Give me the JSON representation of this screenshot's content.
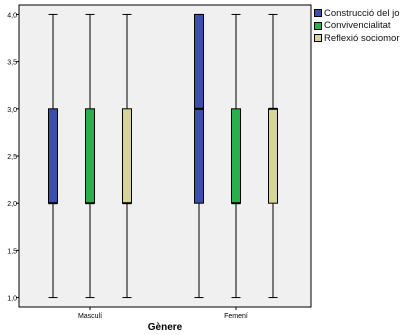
{
  "chart_data": {
    "type": "boxplot",
    "xlabel": "Gènere",
    "ylabel": "",
    "ylim": [
      0.9,
      4.1
    ],
    "yticks": [
      "1,0",
      "1,5",
      "2,0",
      "2,5",
      "3,0",
      "3,5",
      "4,0"
    ],
    "ytick_values": [
      1.0,
      1.5,
      2.0,
      2.5,
      3.0,
      3.5,
      4.0
    ],
    "categories": [
      "Masculí",
      "Femení"
    ],
    "series": [
      {
        "name": "Construcció del jo",
        "color": "#3b4fa8",
        "boxes": [
          {
            "min": 1.0,
            "q1": 2.0,
            "median": 2.0,
            "q3": 3.0,
            "max": 4.0
          },
          {
            "min": 1.0,
            "q1": 2.0,
            "median": 3.0,
            "q3": 4.0,
            "max": 4.0
          }
        ]
      },
      {
        "name": "Convivencialitat",
        "color": "#2ab04a",
        "boxes": [
          {
            "min": 1.0,
            "q1": 2.0,
            "median": 2.0,
            "q3": 3.0,
            "max": 4.0
          },
          {
            "min": 1.0,
            "q1": 2.0,
            "median": 2.0,
            "q3": 3.0,
            "max": 4.0
          }
        ]
      },
      {
        "name": "Reflexió sociomoral",
        "color": "#d7d49a",
        "boxes": [
          {
            "min": 1.0,
            "q1": 2.0,
            "median": 2.0,
            "q3": 3.0,
            "max": 4.0
          },
          {
            "min": 1.0,
            "q1": 2.0,
            "median": 3.0,
            "q3": 3.0,
            "max": 4.0
          }
        ]
      }
    ],
    "legend_position": "top-right",
    "grid": false,
    "plot_background": "#f0f0f0"
  }
}
